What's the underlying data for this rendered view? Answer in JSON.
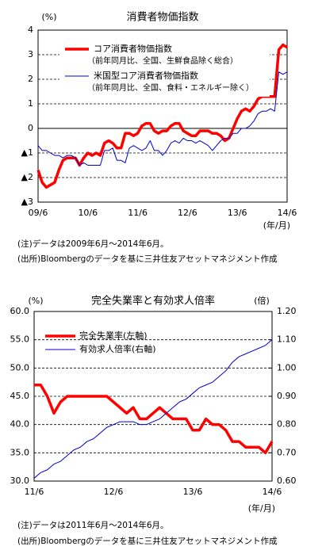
{
  "chart_data": [
    {
      "type": "line",
      "title": "消費者物価指数",
      "y_label": "(%)",
      "x_label": "(年/月)",
      "categories": [
        "09/6",
        null,
        null,
        null,
        null,
        null,
        null,
        null,
        null,
        null,
        null,
        null,
        "10/6",
        null,
        null,
        null,
        null,
        null,
        null,
        null,
        null,
        null,
        null,
        null,
        "11/6",
        null,
        null,
        null,
        null,
        null,
        null,
        null,
        null,
        null,
        null,
        null,
        "12/6",
        null,
        null,
        null,
        null,
        null,
        null,
        null,
        null,
        null,
        null,
        null,
        "13/6",
        null,
        null,
        null,
        null,
        null,
        null,
        null,
        null,
        null,
        null,
        null,
        "14/6"
      ],
      "ylim": [
        -3,
        4
      ],
      "yticks": [
        4,
        3,
        2,
        1,
        0,
        {
          "value": -1,
          "label": "▲1"
        },
        {
          "value": -2,
          "label": "▲2"
        },
        {
          "value": -3,
          "label": "▲3"
        }
      ],
      "grid": true,
      "series": [
        {
          "name": "コア消費者物価指数",
          "note": "（前年同月比、全国、生鮮食品除く総合）",
          "color": "#ff0000",
          "values": [
            -1.7,
            -2.2,
            -2.4,
            -2.3,
            -2.2,
            -1.7,
            -1.3,
            -1.2,
            -1.2,
            -1.2,
            -1.5,
            -1.2,
            -1.0,
            -1.1,
            -1.0,
            -1.1,
            -0.6,
            -0.5,
            -0.6,
            -0.8,
            -0.8,
            -0.2,
            -0.2,
            -0.3,
            -0.2,
            0.1,
            0.2,
            0.2,
            -0.1,
            -0.2,
            -0.1,
            -0.1,
            0.1,
            0.2,
            0.2,
            -0.1,
            -0.2,
            -0.3,
            -0.3,
            -0.1,
            -0.1,
            -0.1,
            -0.2,
            -0.2,
            -0.3,
            -0.5,
            -0.4,
            0.0,
            0.4,
            0.7,
            0.8,
            0.7,
            0.9,
            1.2,
            1.3,
            1.3,
            1.3,
            1.3,
            3.2,
            3.4,
            3.3
          ]
        },
        {
          "name": "米国型コア消費者物価指数",
          "note": "（前年同月比、全国、食料・エネルギー除く）",
          "color": "#0000cc",
          "values": [
            -0.7,
            -0.9,
            -0.9,
            -1.0,
            -1.1,
            -1.1,
            -1.2,
            -1.1,
            -1.1,
            -1.2,
            -1.5,
            -1.4,
            -1.5,
            -1.5,
            -1.5,
            -1.5,
            -0.9,
            -0.9,
            -0.8,
            -1.3,
            -1.3,
            -1.4,
            -0.8,
            -0.7,
            -0.8,
            -0.9,
            -0.8,
            -0.5,
            -0.9,
            -0.9,
            -1.1,
            -0.9,
            -0.6,
            -0.5,
            -0.6,
            -0.4,
            -0.5,
            -0.5,
            -0.6,
            -0.5,
            -0.6,
            -0.7,
            -0.9,
            -0.7,
            -0.5,
            -0.4,
            -0.4,
            -0.2,
            -0.2,
            0.0,
            0.0,
            0.1,
            0.3,
            0.6,
            0.7,
            0.7,
            0.8,
            0.7,
            2.3,
            2.2,
            2.3
          ]
        }
      ],
      "notes": [
        "(注)データは2009年6月～2014年6月。",
        "(出所)Bloombergのデータを基に三井住友アセットマネジメント作成"
      ]
    },
    {
      "type": "line",
      "title": "完全失業率と有効求人倍率",
      "y_label": "(%)",
      "y2_label": "(倍)",
      "x_label": "(年/月)",
      "categories": [
        "11/6",
        null,
        null,
        null,
        null,
        null,
        null,
        null,
        null,
        null,
        null,
        null,
        "12/6",
        null,
        null,
        null,
        null,
        null,
        null,
        null,
        null,
        null,
        null,
        null,
        "13/6",
        null,
        null,
        null,
        null,
        null,
        null,
        null,
        null,
        null,
        null,
        null,
        "14/6"
      ],
      "ylim": [
        30,
        60
      ],
      "yticks": [
        {
          "value": 60,
          "label": "60.0"
        },
        {
          "value": 55,
          "label": "55.0"
        },
        {
          "value": 50,
          "label": "50.0"
        },
        {
          "value": 45,
          "label": "45.0"
        },
        {
          "value": 40,
          "label": "40.0"
        },
        {
          "value": 35,
          "label": "35.0"
        },
        {
          "value": 30,
          "label": "30.0"
        }
      ],
      "y2lim": [
        0.6,
        1.2
      ],
      "y2ticks": [
        {
          "value": 1.2,
          "label": "1.20"
        },
        {
          "value": 1.1,
          "label": "1.10"
        },
        {
          "value": 1.0,
          "label": "1.00"
        },
        {
          "value": 0.9,
          "label": "0.90"
        },
        {
          "value": 0.8,
          "label": "0.80"
        },
        {
          "value": 0.7,
          "label": "0.70"
        },
        {
          "value": 0.6,
          "label": "0.60"
        }
      ],
      "grid": true,
      "series": [
        {
          "name": "完全失業率(左軸)",
          "color": "#ff0000",
          "values": [
            47,
            47,
            45,
            42,
            44,
            45,
            45,
            45,
            45,
            45,
            45,
            45,
            44,
            43,
            42,
            43,
            41,
            41,
            42,
            43,
            42,
            41,
            41,
            41,
            39,
            39,
            41,
            40,
            40,
            39,
            37,
            37,
            36,
            36,
            36,
            35,
            37
          ]
        },
        {
          "name": "有効求人倍率(右軸)",
          "color": "#0000cc",
          "axis": "y2",
          "values": [
            0.61,
            0.63,
            0.64,
            0.66,
            0.67,
            0.69,
            0.71,
            0.72,
            0.74,
            0.75,
            0.77,
            0.79,
            0.8,
            0.81,
            0.81,
            0.81,
            0.8,
            0.8,
            0.81,
            0.82,
            0.84,
            0.86,
            0.88,
            0.89,
            0.91,
            0.93,
            0.94,
            0.95,
            0.97,
            0.99,
            1.02,
            1.04,
            1.05,
            1.06,
            1.07,
            1.08,
            1.1
          ]
        }
      ],
      "notes": [
        "(注)データは2011年6月～2014年6月。",
        "(出所)Bloombergのデータを基に三井住友アセットマネジメント作成"
      ]
    }
  ]
}
